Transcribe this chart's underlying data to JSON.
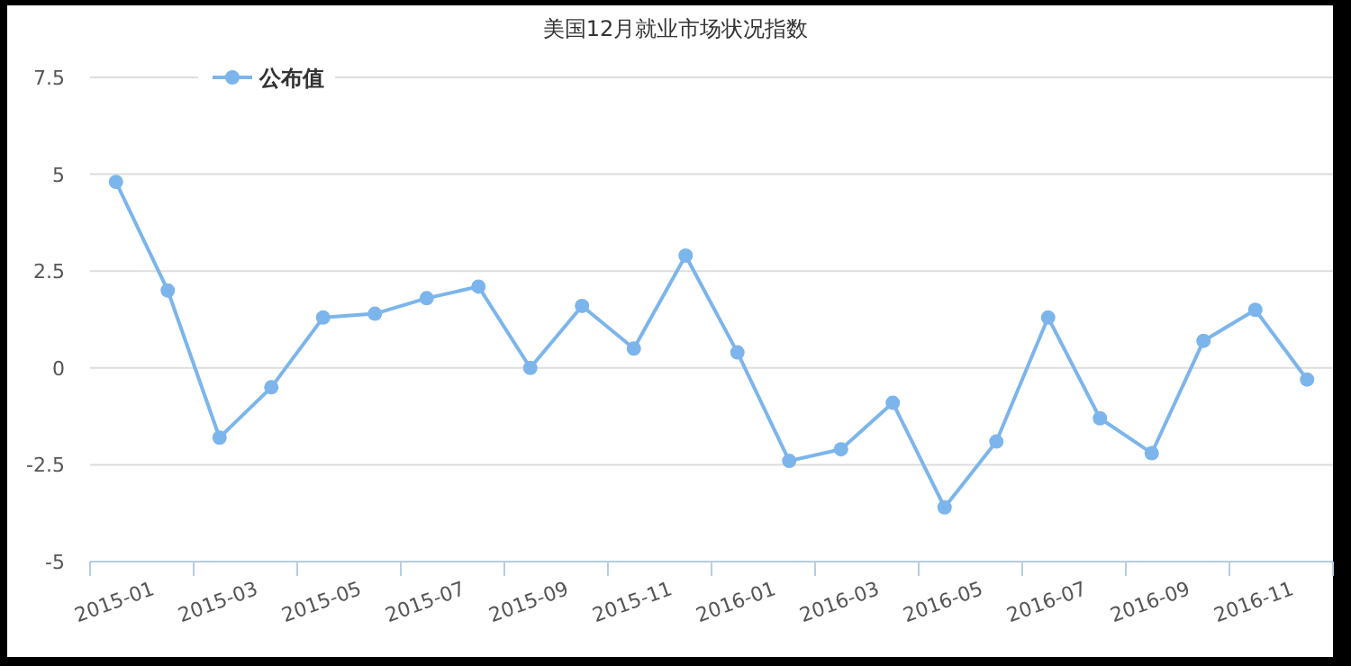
{
  "chart_data": {
    "type": "line",
    "title": "美国12月就业市场状况指数",
    "categories": [
      "2015-01",
      null,
      "2015-03",
      null,
      "2015-05",
      null,
      "2015-07",
      null,
      "2015-09",
      null,
      "2015-11",
      null,
      "2016-01",
      null,
      "2016-03",
      null,
      "2016-05",
      null,
      "2016-07",
      null,
      "2016-09",
      null,
      "2016-11",
      null
    ],
    "series": [
      {
        "name": "公布值",
        "color": "#7cb5ec",
        "values": [
          4.8,
          2.0,
          -1.8,
          -0.5,
          1.3,
          1.4,
          1.8,
          2.1,
          0.0,
          1.6,
          0.5,
          2.9,
          0.4,
          -2.4,
          -2.1,
          -0.9,
          -3.6,
          -1.9,
          1.3,
          -1.3,
          -2.2,
          0.7,
          1.5,
          -0.3
        ]
      }
    ],
    "ylim": [
      -5,
      7.5
    ],
    "yticks": [
      -5,
      -2.5,
      0,
      2.5,
      5,
      7.5
    ],
    "grid": "y",
    "legend": "top left",
    "marker": "circle",
    "line_style": "solid"
  }
}
